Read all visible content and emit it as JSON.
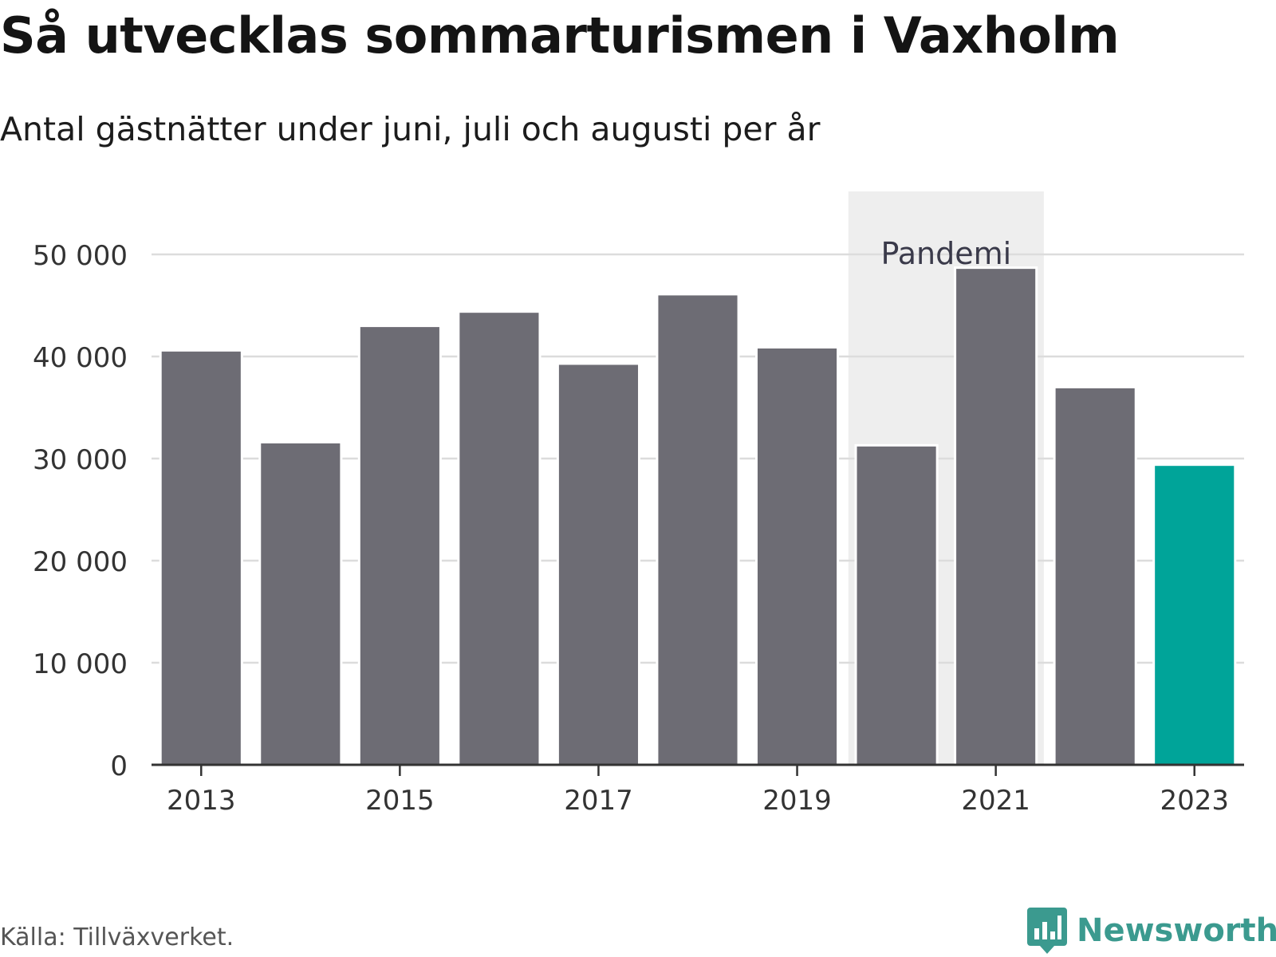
{
  "title": "Så utvecklas sommarturismen i Vaxholm",
  "subtitle": "Antal gästnätter under juni, juli och augusti per år",
  "source": "Källa: Tillväxverket.",
  "logo": {
    "text": "Newsworthy",
    "icon": "newsworthy-chart-icon",
    "color": "#3b9a8f"
  },
  "colors": {
    "bar": "#6d6c74",
    "highlight": "#00a499",
    "band": "#eeeeee",
    "grid": "#dcdcdc",
    "axis": "#333333"
  },
  "chart_data": {
    "type": "bar",
    "categories": [
      2013,
      2014,
      2015,
      2016,
      2017,
      2018,
      2019,
      2020,
      2021,
      2022,
      2023
    ],
    "values": [
      40600,
      31600,
      43000,
      44400,
      39300,
      46100,
      40900,
      31300,
      48700,
      37000,
      29400
    ],
    "highlight_category": 2023,
    "title": "Så utvecklas sommarturismen i Vaxholm",
    "subtitle": "Antal gästnätter under juni, juli och augusti per år",
    "xlabel": "",
    "ylabel": "",
    "ylim": [
      0,
      50000
    ],
    "yticks": [
      0,
      10000,
      20000,
      30000,
      40000,
      50000
    ],
    "ytick_labels": [
      "0",
      "10 000",
      "20 000",
      "30 000",
      "40 000",
      "50 000"
    ],
    "xticks": [
      2013,
      2015,
      2017,
      2019,
      2021,
      2023
    ],
    "xtick_labels": [
      "2013",
      "2015",
      "2017",
      "2019",
      "2021",
      "2023"
    ],
    "grid": true,
    "annotation": {
      "label": "Pandemi",
      "from": 2020,
      "to": 2021
    }
  }
}
